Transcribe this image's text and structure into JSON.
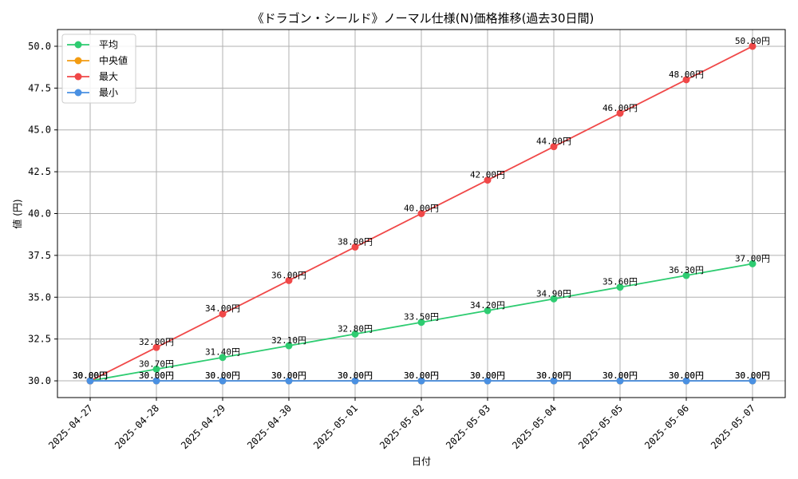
{
  "chart_data": {
    "type": "line",
    "title": "《ドラゴン・シールド》ノーマル仕様(N)価格推移(過去30日間)",
    "xlabel": "日付",
    "ylabel": "値 (円)",
    "categories": [
      "2025-04-27",
      "2025-04-28",
      "2025-04-29",
      "2025-04-30",
      "2025-05-01",
      "2025-05-02",
      "2025-05-03",
      "2025-05-04",
      "2025-05-05",
      "2025-05-06",
      "2025-05-07"
    ],
    "ylim": [
      29.0,
      51.0
    ],
    "yticks": [
      30.0,
      32.5,
      35.0,
      37.5,
      40.0,
      42.5,
      45.0,
      47.5,
      50.0
    ],
    "ytick_labels": [
      "30.0",
      "32.5",
      "35.0",
      "37.5",
      "40.0",
      "42.5",
      "45.0",
      "47.5",
      "50.0"
    ],
    "grid": true,
    "legend_position": "top-left",
    "value_suffix": "円",
    "series": [
      {
        "name": "平均",
        "color": "#2ecc71",
        "values": [
          30.0,
          30.7,
          31.4,
          32.1,
          32.8,
          33.5,
          34.2,
          34.9,
          35.6,
          36.3,
          37.0
        ]
      },
      {
        "name": "中央値",
        "color": "#f39c12",
        "values": [
          30.0,
          30.0,
          30.0,
          30.0,
          30.0,
          30.0,
          30.0,
          30.0,
          30.0,
          30.0,
          30.0
        ]
      },
      {
        "name": "最大",
        "color": "#f04848",
        "values": [
          30.0,
          32.0,
          34.0,
          36.0,
          38.0,
          40.0,
          42.0,
          44.0,
          46.0,
          48.0,
          50.0
        ]
      },
      {
        "name": "最小",
        "color": "#4a90e2",
        "values": [
          30.0,
          30.0,
          30.0,
          30.0,
          30.0,
          30.0,
          30.0,
          30.0,
          30.0,
          30.0,
          30.0
        ]
      }
    ]
  }
}
